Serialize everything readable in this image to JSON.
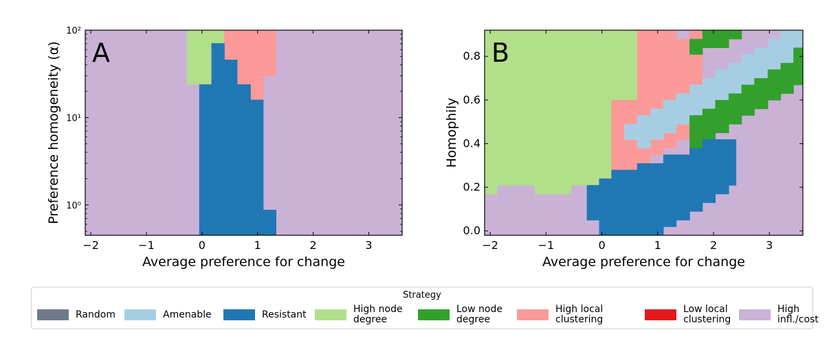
{
  "chart_data": [
    {
      "type": "heatmap",
      "panel_label": "A",
      "xlabel": "Average preference for change",
      "ylabel": "Preference homogeneity (α)",
      "xlim": [
        -2.1,
        3.6
      ],
      "ylim": [
        0.45,
        100
      ],
      "yscale": "log",
      "x_ticks": [
        -2,
        -1,
        0,
        1,
        2,
        3
      ],
      "x_tick_labels": [
        "−2",
        "−1",
        "0",
        "1",
        "2",
        "3"
      ],
      "y_ticks": [
        1,
        10,
        100
      ],
      "y_tick_labels": [
        "10⁰",
        "10¹",
        "10²"
      ],
      "background_strategy": "High infl./cost",
      "regions": [
        {
          "strategy": "High node degree",
          "columns": [
            {
              "x0": -0.27,
              "x1": 0.17,
              "y0": 24,
              "y1": 100
            },
            {
              "x0": 0.17,
              "x1": 0.4,
              "y0": 71,
              "y1": 100
            }
          ]
        },
        {
          "strategy": "High local clustering",
          "columns": [
            {
              "x0": 0.4,
              "x1": 0.63,
              "y0": 46,
              "y1": 100
            },
            {
              "x0": 0.63,
              "x1": 0.87,
              "y0": 24,
              "y1": 100
            },
            {
              "x0": 0.87,
              "x1": 1.1,
              "y0": 16,
              "y1": 100
            },
            {
              "x0": 1.1,
              "x1": 1.33,
              "y0": 30,
              "y1": 100
            }
          ]
        },
        {
          "strategy": "Resistant",
          "columns": [
            {
              "x0": -0.05,
              "x1": 0.17,
              "y0": 0.45,
              "y1": 24
            },
            {
              "x0": 0.17,
              "x1": 0.4,
              "y0": 0.45,
              "y1": 71
            },
            {
              "x0": 0.4,
              "x1": 0.63,
              "y0": 0.45,
              "y1": 46
            },
            {
              "x0": 0.63,
              "x1": 0.87,
              "y0": 0.45,
              "y1": 24
            },
            {
              "x0": 0.87,
              "x1": 1.1,
              "y0": 0.45,
              "y1": 16
            },
            {
              "x0": 1.1,
              "x1": 1.33,
              "y0": 0.45,
              "y1": 0.88
            }
          ]
        }
      ]
    },
    {
      "type": "heatmap",
      "panel_label": "B",
      "xlabel": "Average preference for change",
      "ylabel": "Homophily",
      "xlim": [
        -2.1,
        3.6
      ],
      "ylim": [
        -0.02,
        0.92
      ],
      "yscale": "linear",
      "x_ticks": [
        -2,
        -1,
        0,
        1,
        2,
        3
      ],
      "x_tick_labels": [
        "−2",
        "−1",
        "0",
        "1",
        "2",
        "3"
      ],
      "y_ticks": [
        0.0,
        0.2,
        0.4,
        0.6,
        0.8
      ],
      "y_tick_labels": [
        "0.0",
        "0.2",
        "0.4",
        "0.6",
        "0.8"
      ],
      "background_strategy": "High infl./cost",
      "regions": [
        {
          "strategy": "High node degree",
          "columns": [
            {
              "x0": -2.1,
              "x1": -1.88,
              "y0": 0.17,
              "y1": 0.92
            },
            {
              "x0": -1.88,
              "x1": -1.2,
              "y0": 0.21,
              "y1": 0.92
            },
            {
              "x0": -1.2,
              "x1": -0.55,
              "y0": 0.17,
              "y1": 0.92
            },
            {
              "x0": -0.55,
              "x1": -0.05,
              "y0": 0.21,
              "y1": 0.92
            },
            {
              "x0": -0.05,
              "x1": 0.17,
              "y0": 0.24,
              "y1": 0.92
            },
            {
              "x0": 0.17,
              "x1": 0.4,
              "y0": 0.28,
              "y1": 0.92
            },
            {
              "x0": 0.4,
              "x1": 0.63,
              "y0": 0.6,
              "y1": 0.92
            }
          ]
        },
        {
          "strategy": "High local clustering",
          "columns": [
            {
              "x0": 0.17,
              "x1": 0.4,
              "y0": 0.28,
              "y1": 0.6
            },
            {
              "x0": 0.4,
              "x1": 0.63,
              "y0": 0.28,
              "y1": 0.6
            },
            {
              "x0": 0.63,
              "x1": 0.87,
              "y0": 0.31,
              "y1": 0.92
            },
            {
              "x0": 0.87,
              "x1": 1.1,
              "y0": 0.35,
              "y1": 0.92
            },
            {
              "x0": 1.1,
              "x1": 1.33,
              "y0": 0.38,
              "y1": 0.92
            },
            {
              "x0": 1.33,
              "x1": 1.57,
              "y0": 0.42,
              "y1": 0.88
            },
            {
              "x0": 1.57,
              "x1": 1.8,
              "y0": 0.67,
              "y1": 0.92
            }
          ]
        },
        {
          "strategy": "Amenable",
          "columns": [
            {
              "x0": 0.4,
              "x1": 0.63,
              "y0": 0.42,
              "y1": 0.49
            },
            {
              "x0": 0.63,
              "x1": 0.87,
              "y0": 0.38,
              "y1": 0.53
            },
            {
              "x0": 0.87,
              "x1": 1.1,
              "y0": 0.42,
              "y1": 0.56
            },
            {
              "x0": 1.1,
              "x1": 1.33,
              "y0": 0.45,
              "y1": 0.6
            },
            {
              "x0": 1.33,
              "x1": 1.57,
              "y0": 0.49,
              "y1": 0.63
            },
            {
              "x0": 1.57,
              "x1": 1.8,
              "y0": 0.53,
              "y1": 0.67
            },
            {
              "x0": 1.8,
              "x1": 2.03,
              "y0": 0.56,
              "y1": 0.7
            },
            {
              "x0": 2.03,
              "x1": 2.27,
              "y0": 0.6,
              "y1": 0.74
            },
            {
              "x0": 2.27,
              "x1": 2.5,
              "y0": 0.63,
              "y1": 0.77
            },
            {
              "x0": 2.5,
              "x1": 2.73,
              "y0": 0.67,
              "y1": 0.81
            },
            {
              "x0": 2.73,
              "x1": 2.97,
              "y0": 0.7,
              "y1": 0.84
            },
            {
              "x0": 2.97,
              "x1": 3.2,
              "y0": 0.74,
              "y1": 0.88
            },
            {
              "x0": 3.2,
              "x1": 3.43,
              "y0": 0.77,
              "y1": 0.92
            },
            {
              "x0": 3.43,
              "x1": 3.6,
              "y0": 0.84,
              "y1": 0.92
            }
          ]
        },
        {
          "strategy": "Low node degree",
          "columns": [
            {
              "x0": 1.57,
              "x1": 1.8,
              "y0": 0.38,
              "y1": 0.53
            },
            {
              "x0": 1.8,
              "x1": 2.03,
              "y0": 0.42,
              "y1": 0.56
            },
            {
              "x0": 2.03,
              "x1": 2.27,
              "y0": 0.45,
              "y1": 0.6
            },
            {
              "x0": 2.27,
              "x1": 2.5,
              "y0": 0.49,
              "y1": 0.63
            },
            {
              "x0": 2.5,
              "x1": 2.73,
              "y0": 0.53,
              "y1": 0.67
            },
            {
              "x0": 2.73,
              "x1": 2.97,
              "y0": 0.56,
              "y1": 0.7
            },
            {
              "x0": 2.97,
              "x1": 3.2,
              "y0": 0.6,
              "y1": 0.74
            },
            {
              "x0": 3.2,
              "x1": 3.43,
              "y0": 0.63,
              "y1": 0.77
            },
            {
              "x0": 3.43,
              "x1": 3.6,
              "y0": 0.67,
              "y1": 0.84
            },
            {
              "x0": 1.57,
              "x1": 1.8,
              "y0": 0.81,
              "y1": 0.88
            },
            {
              "x0": 1.8,
              "x1": 2.03,
              "y0": 0.84,
              "y1": 0.92
            },
            {
              "x0": 2.03,
              "x1": 2.27,
              "y0": 0.84,
              "y1": 0.92
            },
            {
              "x0": 2.27,
              "x1": 2.5,
              "y0": 0.88,
              "y1": 0.92
            }
          ]
        },
        {
          "strategy": "Resistant",
          "columns": [
            {
              "x0": -0.27,
              "x1": -0.05,
              "y0": 0.05,
              "y1": 0.21
            },
            {
              "x0": -0.05,
              "x1": 0.17,
              "y0": -0.02,
              "y1": 0.24
            },
            {
              "x0": 0.17,
              "x1": 0.4,
              "y0": -0.02,
              "y1": 0.28
            },
            {
              "x0": 0.4,
              "x1": 0.63,
              "y0": -0.02,
              "y1": 0.28
            },
            {
              "x0": 0.63,
              "x1": 0.87,
              "y0": -0.02,
              "y1": 0.31
            },
            {
              "x0": 0.87,
              "x1": 1.1,
              "y0": -0.02,
              "y1": 0.31
            },
            {
              "x0": 1.1,
              "x1": 1.33,
              "y0": 0.02,
              "y1": 0.35
            },
            {
              "x0": 1.33,
              "x1": 1.57,
              "y0": 0.05,
              "y1": 0.35
            },
            {
              "x0": 1.57,
              "x1": 1.8,
              "y0": 0.09,
              "y1": 0.38
            },
            {
              "x0": 1.8,
              "x1": 2.03,
              "y0": 0.13,
              "y1": 0.42
            },
            {
              "x0": 2.03,
              "x1": 2.27,
              "y0": 0.17,
              "y1": 0.42
            },
            {
              "x0": 2.27,
              "x1": 2.4,
              "y0": 0.21,
              "y1": 0.42
            }
          ]
        }
      ]
    }
  ],
  "legend": {
    "title": "Strategy",
    "items": [
      {
        "label": "Random",
        "color": "#707b8a"
      },
      {
        "label": "Amenable",
        "color": "#a6cee3"
      },
      {
        "label": "Resistant",
        "color": "#1f78b4"
      },
      {
        "label": "High node\ndegree",
        "color": "#b2df8a"
      },
      {
        "label": "Low node\ndegree",
        "color": "#33a02c"
      },
      {
        "label": "High local\nclustering",
        "color": "#fb9a99"
      },
      {
        "label": "Low local\nclustering",
        "color": "#e31a1c"
      },
      {
        "label": "High infl./cost",
        "color": "#cab2d6"
      }
    ]
  },
  "colors": {
    "Random": "#707b8a",
    "Amenable": "#a6cee3",
    "Resistant": "#1f78b4",
    "High node degree": "#b2df8a",
    "Low node degree": "#33a02c",
    "High local clustering": "#fb9a99",
    "Low local clustering": "#e31a1c",
    "High infl./cost": "#cab2d6"
  }
}
